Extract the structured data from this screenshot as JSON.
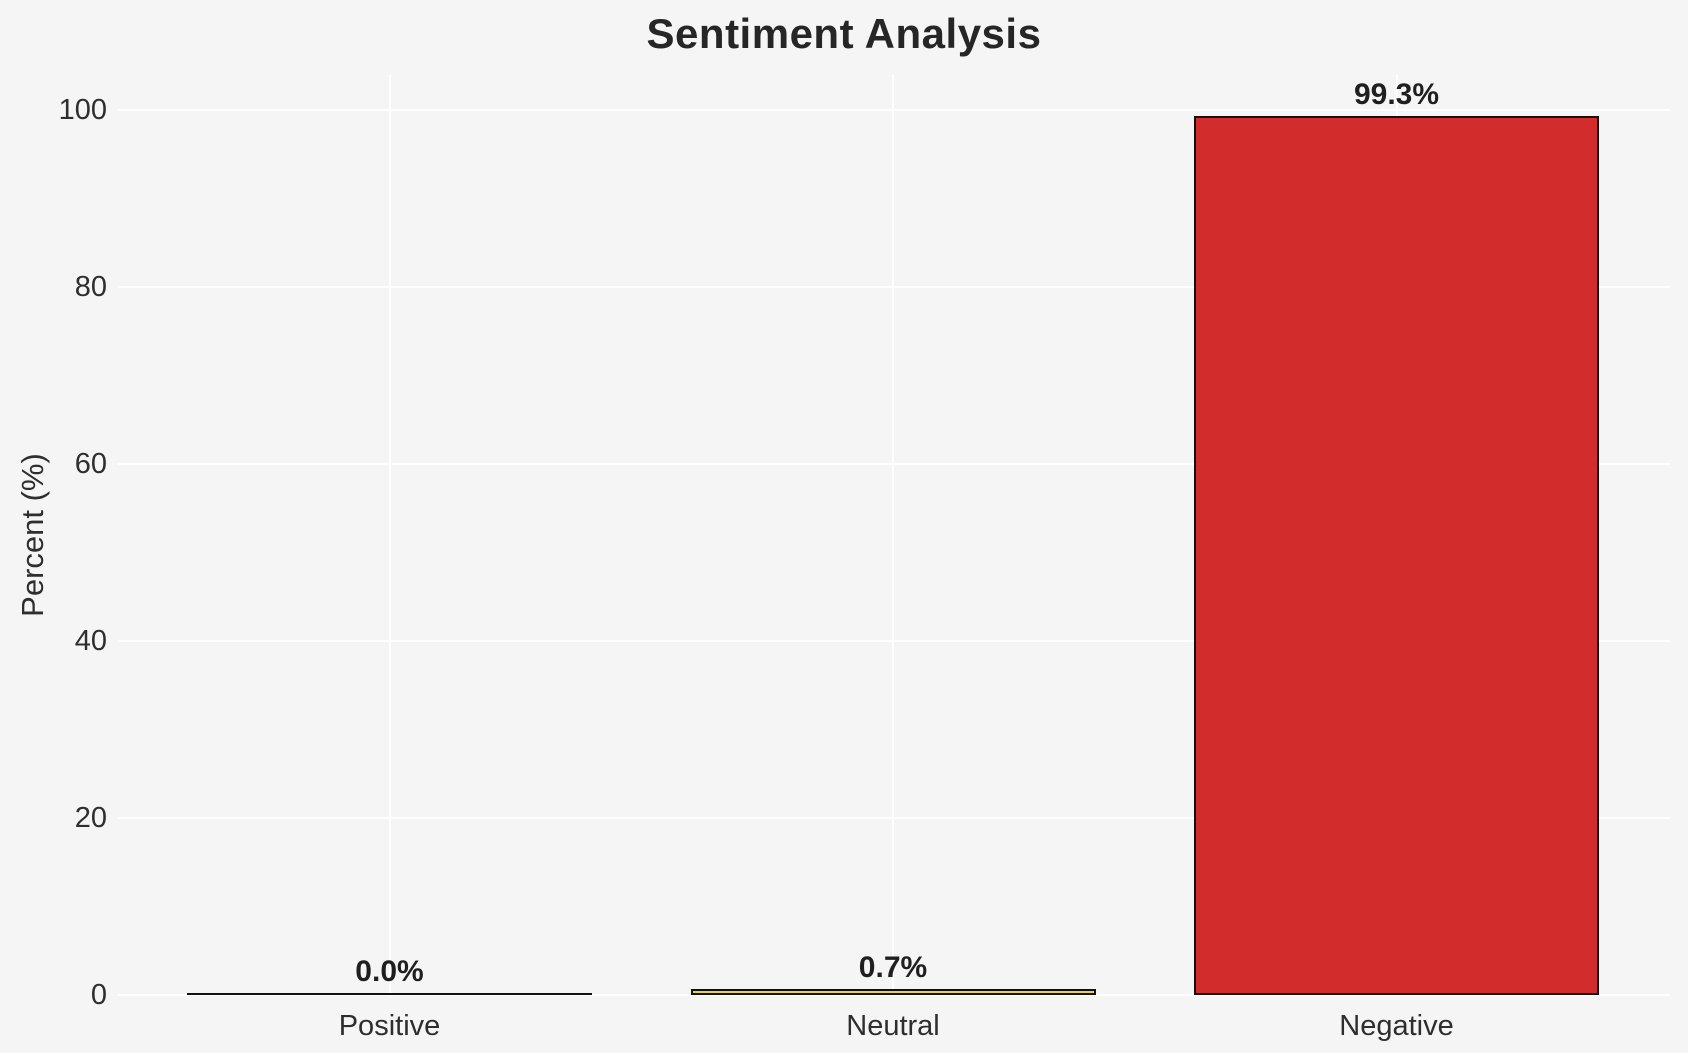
{
  "page": {
    "background_color": "#f5f5f5"
  },
  "chart_data": {
    "type": "bar",
    "title": "Sentiment Analysis",
    "xlabel": "",
    "ylabel": "Percent (%)",
    "categories": [
      "Positive",
      "Neutral",
      "Negative"
    ],
    "values": [
      0.0,
      0.7,
      99.3
    ],
    "value_labels": [
      "0.0%",
      "0.7%",
      "99.3%"
    ],
    "bar_colors": [
      null,
      "#f0d142",
      "#d32c2c"
    ],
    "bar_edge_color": "#111111",
    "yticks": [
      0,
      20,
      40,
      60,
      80,
      100
    ],
    "ytick_labels": [
      "0",
      "20",
      "40",
      "60",
      "80",
      "100"
    ],
    "ylim": [
      0,
      104
    ],
    "grid": true,
    "grid_color": "#ffffff",
    "legend": null,
    "background_color": "#f5f5f5",
    "title_color": "#262626",
    "text_color": "#2e2e2e"
  }
}
